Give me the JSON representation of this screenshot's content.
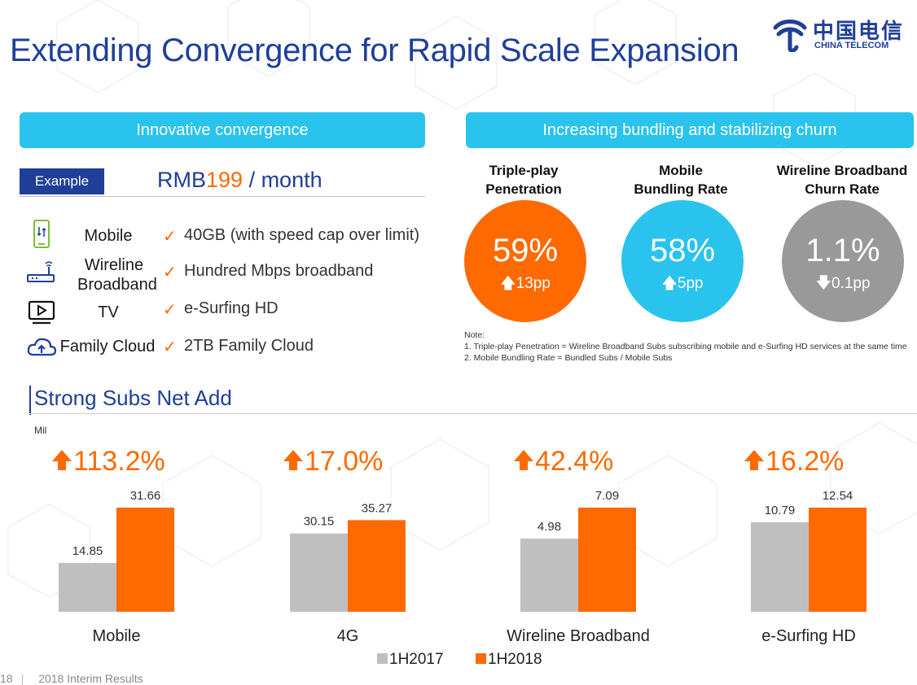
{
  "page_title": "Extending Convergence for Rapid Scale Expansion",
  "logo": {
    "cn": "中国电信",
    "en": "CHINA TELECOM"
  },
  "left_panel": {
    "header": "Innovative convergence",
    "example_label": "Example",
    "price_prefix": "RMB",
    "price_value": "199",
    "price_suffix": " / month",
    "services": [
      {
        "icon": "mobile-phone-icon",
        "name": "Mobile",
        "check": "✓",
        "desc": "40GB (with speed cap over limit)"
      },
      {
        "icon": "router-icon",
        "name": "Wireline Broadband",
        "check": "✓",
        "desc": "Hundred Mbps broadband"
      },
      {
        "icon": "tv-play-icon",
        "name": "TV",
        "check": "✓",
        "desc": "e-Surfing HD"
      },
      {
        "icon": "cloud-upload-icon",
        "name": "Family Cloud",
        "check": "✓",
        "desc": "2TB Family Cloud"
      }
    ]
  },
  "right_panel": {
    "header": "Increasing bundling and stabilizing churn",
    "metrics": [
      {
        "label_line1": "Triple-play",
        "label_line2": "Penetration",
        "value": "59%",
        "change": "13pp",
        "direction": "up",
        "color": "#ff6a00"
      },
      {
        "label_line1": "Mobile",
        "label_line2": "Bundling Rate",
        "value": "58%",
        "change": "5pp",
        "direction": "up",
        "color": "#29c3ee"
      },
      {
        "label_line1": "Wireline Broadband",
        "label_line2": "Churn Rate",
        "value": "1.1%",
        "change": "0.1pp",
        "direction": "down",
        "color": "#999999"
      }
    ],
    "notes": {
      "title": "Note:",
      "items": [
        "1. Triple-play Penetration = Wireline Broadband Subs subscribing mobile and e-Surfing HD services at the same time",
        "2. Mobile Bundling Rate = Bundled Subs / Mobile Subs"
      ]
    }
  },
  "subs_section": {
    "title": "Strong Subs Net Add"
  },
  "chart_data": {
    "type": "bar",
    "ylabel": "Mil",
    "categories": [
      "Mobile",
      "4G",
      "Wireline Broadband",
      "e-Surfing HD"
    ],
    "series": [
      {
        "name": "1H2017",
        "color": "#bfbfbf",
        "values": [
          14.85,
          30.15,
          4.98,
          10.79
        ]
      },
      {
        "name": "1H2018",
        "color": "#ff6a00",
        "values": [
          31.66,
          35.27,
          7.09,
          12.54
        ]
      }
    ],
    "growth": [
      "113.2%",
      "17.0%",
      "42.4%",
      "16.2%"
    ],
    "labels_2017": [
      "14.85",
      "30.15",
      "4.98",
      "10.79"
    ],
    "labels_2018": [
      "31.66",
      "35.27",
      "7.09",
      "12.54"
    ],
    "legend_position": "bottom-center",
    "note": "each category group uses its own vertical scale"
  },
  "footer": {
    "page_number": "18",
    "text": "2018 Interim Results"
  }
}
